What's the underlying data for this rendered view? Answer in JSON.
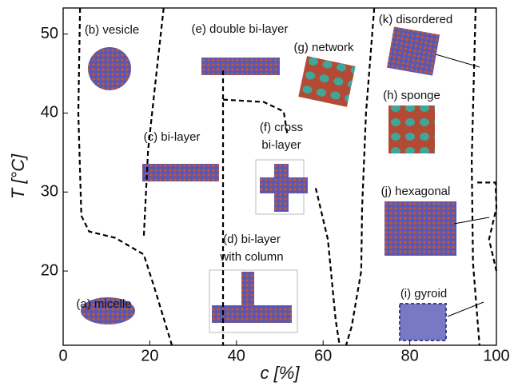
{
  "chart_data": {
    "type": "line",
    "x_label": "c [%]",
    "y_label": "T [°C]",
    "xlim": [
      0,
      100
    ],
    "xticks": [
      0,
      20,
      40,
      60,
      80,
      100
    ],
    "ylim": [
      10.6,
      53.3
    ],
    "yticks": [
      20,
      30,
      40,
      50
    ],
    "line_style": "dashed",
    "color": "#000000",
    "series": [
      {
        "x": [
          3.9,
          3.5,
          4.2,
          6,
          12,
          18.6,
          21,
          25.1
        ],
        "values": [
          53.3,
          40,
          27,
          25,
          24.2,
          22.1,
          18,
          10.6
        ]
      },
      {
        "x": [
          23.2,
          21.4,
          19.6,
          18.6
        ],
        "values": [
          53.3,
          44.4,
          35.3,
          24.2
        ]
      },
      {
        "x": [
          36.9,
          36.9
        ],
        "values": [
          45.4,
          10.6
        ]
      },
      {
        "x": [
          36.9,
          46.3,
          50.9,
          51.8
        ],
        "values": [
          41.7,
          41.4,
          40.2,
          37.1
        ]
      },
      {
        "x": [
          58.3,
          61.1,
          62.9,
          63.8
        ],
        "values": [
          30.5,
          24,
          13.8,
          10.6
        ]
      },
      {
        "x": [
          71.8,
          69.9,
          69.0,
          68.8,
          66.6,
          65.3
        ],
        "values": [
          53.3,
          40,
          28,
          20,
          13,
          10.6
        ]
      },
      {
        "x": [
          95.2,
          94.3,
          94.6,
          96.1
        ],
        "values": [
          53.3,
          34,
          21,
          10.6
        ]
      },
      {
        "x": [
          95.6,
          99.8,
          100,
          98.3,
          100
        ],
        "values": [
          31.2,
          31.2,
          28,
          24,
          20
        ]
      }
    ],
    "annotations": [
      "(b) vesicle",
      "(e) double bi-layer",
      "(g) network",
      "(k) disordered",
      "(h) sponge",
      "(c) bi-layer",
      "(f) cross",
      "bi-layer",
      "(j) hexagonal",
      "(d) bi-layer",
      "with column",
      "(a) micelle",
      "(i) gyroid"
    ]
  }
}
